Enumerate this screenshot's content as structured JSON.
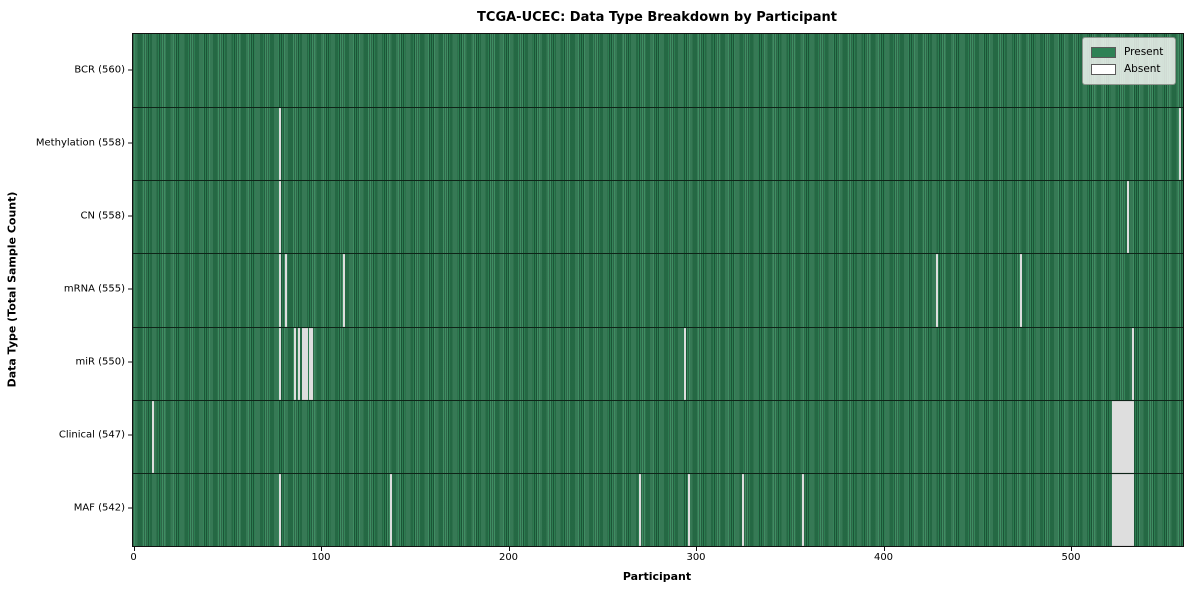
{
  "figure": {
    "title": "TCGA-UCEC: Data Type Breakdown by Participant",
    "xlabel": "Participant",
    "ylabel": "Data Type (Total Sample Count)"
  },
  "legend": {
    "position": "upper right",
    "items": [
      {
        "label": "Present",
        "color": "#2e8155"
      },
      {
        "label": "Absent",
        "color": "#ffffff"
      }
    ]
  },
  "chart_data": {
    "type": "heatmap",
    "title": "TCGA-UCEC: Data Type Breakdown by Participant",
    "xlabel": "Participant",
    "ylabel": "Data Type (Total Sample Count)",
    "x_ticks": [
      0,
      100,
      200,
      300,
      400,
      500
    ],
    "x_range": [
      0,
      560
    ],
    "total_participants": 560,
    "grid": false,
    "legend_position": "upper right",
    "cell_states": [
      "Present",
      "Absent"
    ],
    "colors": {
      "present": "#2e8155",
      "present_edge": "#1e5a3a",
      "absent": "#ffffff",
      "row_border": "#0e2418",
      "axis": "#111111"
    },
    "rows": [
      {
        "label": "BCR (560)",
        "name": "BCR",
        "count": 560,
        "absent_participants": []
      },
      {
        "label": "Methylation (558)",
        "name": "Methylation",
        "count": 558,
        "absent_participants": [
          78,
          558
        ]
      },
      {
        "label": "CN (558)",
        "name": "CN",
        "count": 558,
        "absent_participants": [
          78,
          530
        ]
      },
      {
        "label": "mRNA (555)",
        "name": "mRNA",
        "count": 555,
        "absent_participants": [
          78,
          81,
          112,
          428,
          473
        ]
      },
      {
        "label": "miR (550)",
        "name": "miR",
        "count": 550,
        "absent_participants": [
          78,
          86,
          88,
          90,
          91,
          92,
          94,
          95,
          294,
          533
        ]
      },
      {
        "label": "Clinical (547)",
        "name": "Clinical",
        "count": 547,
        "absent_participants": [
          10,
          522,
          523,
          524,
          525,
          526,
          527,
          528,
          529,
          530,
          531,
          532,
          533
        ]
      },
      {
        "label": "MAF (542)",
        "name": "MAF",
        "count": 542,
        "absent_participants": [
          78,
          137,
          270,
          296,
          325,
          357,
          522,
          523,
          524,
          525,
          526,
          527,
          528,
          529,
          530,
          531,
          532,
          533
        ]
      }
    ]
  }
}
